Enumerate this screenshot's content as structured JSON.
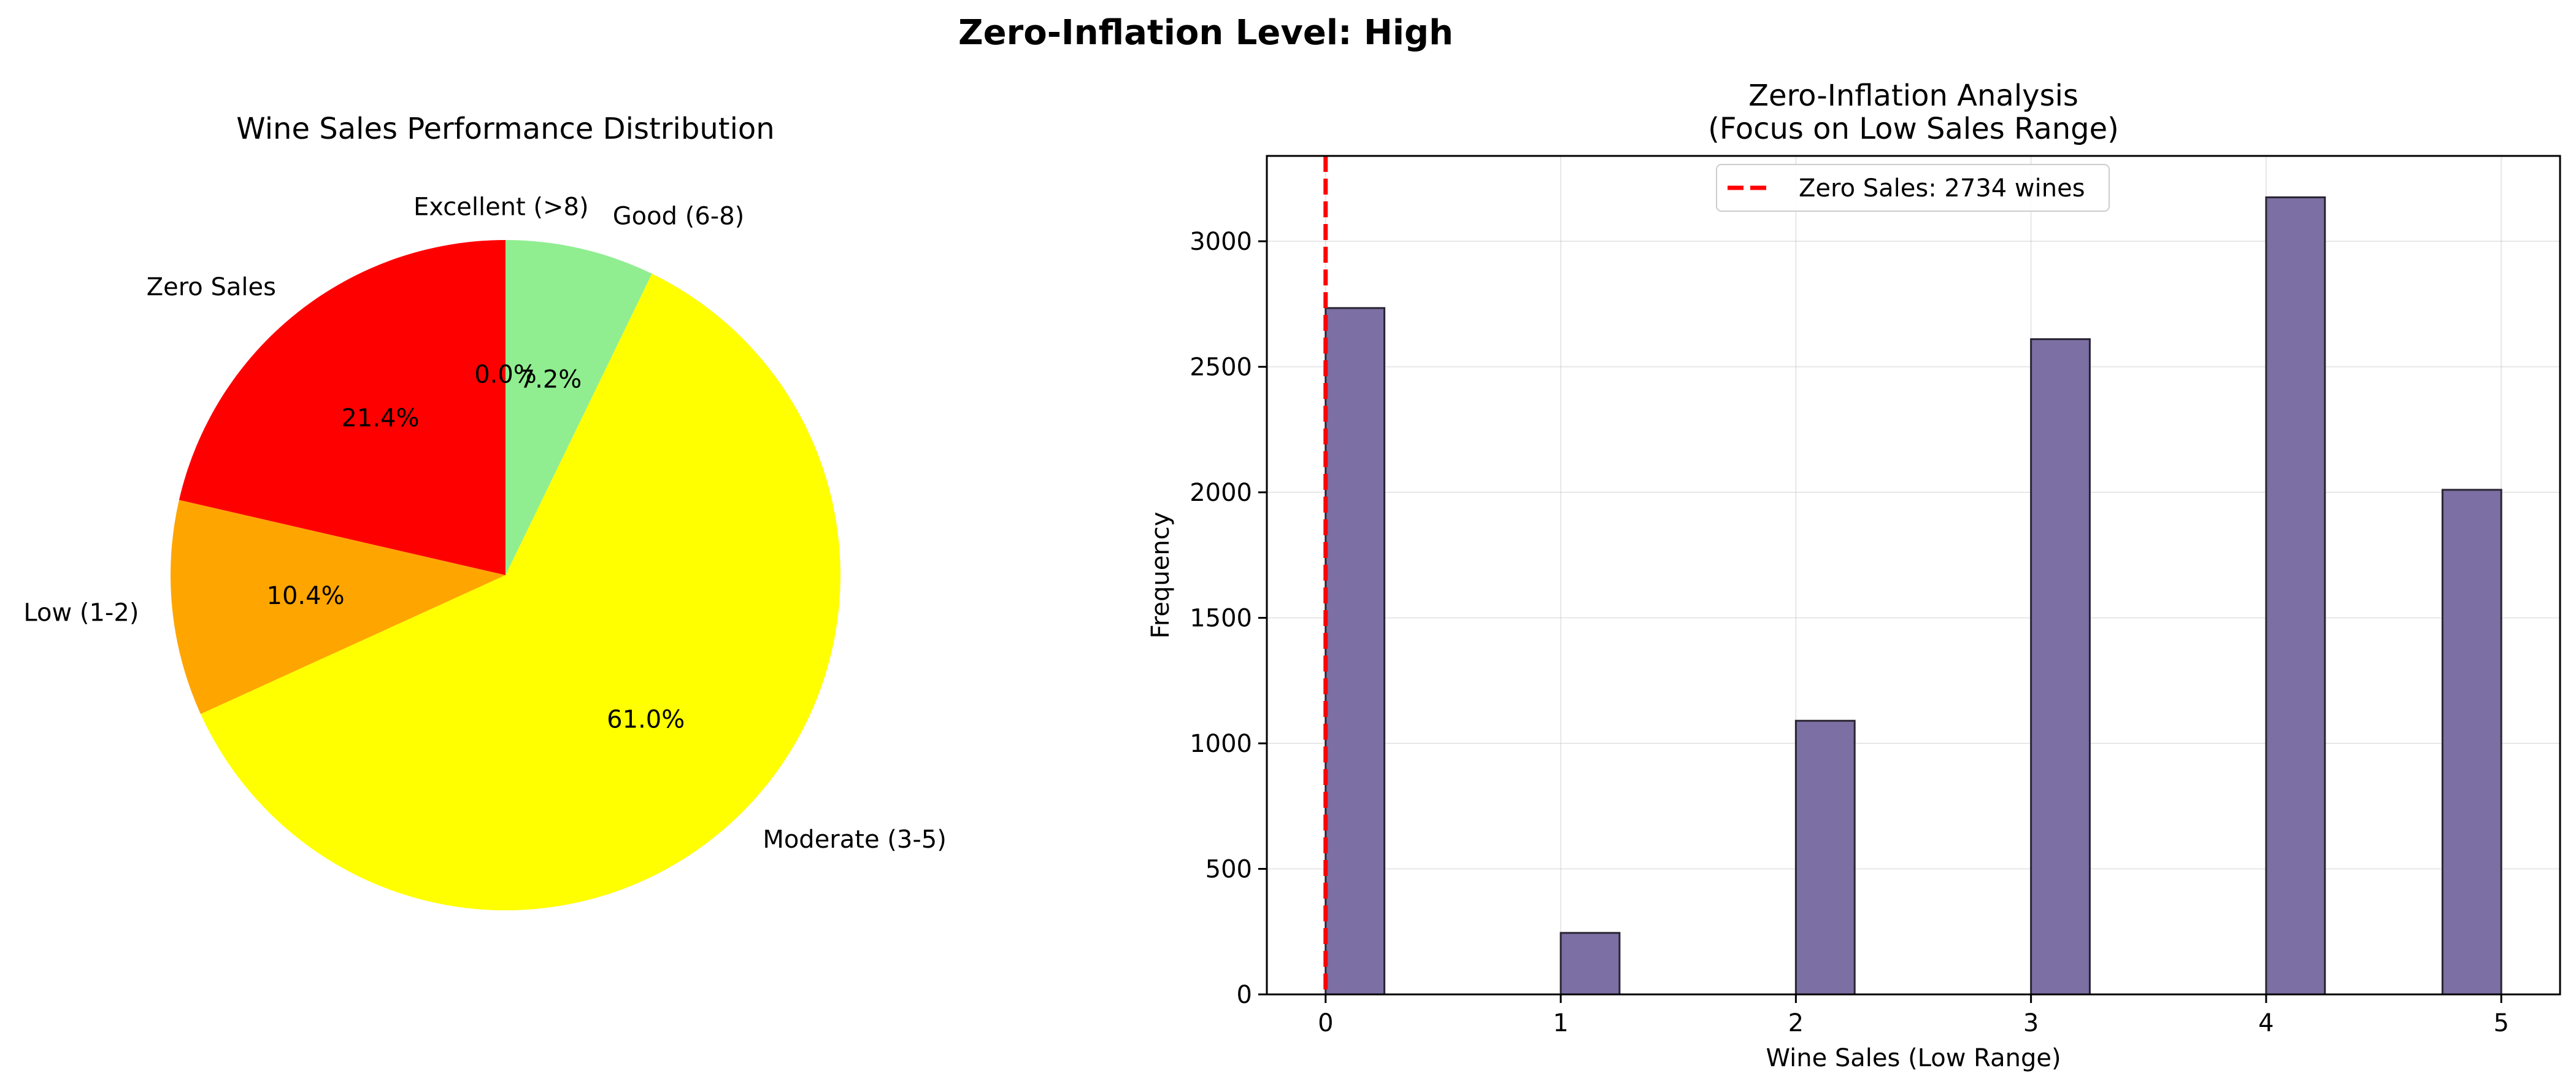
{
  "figure": {
    "suptitle": "Zero-Inflation Level: High"
  },
  "chart_data": [
    {
      "type": "pie",
      "title": "Wine Sales Performance Distribution",
      "labels": [
        "Zero Sales",
        "Low (1-2)",
        "Moderate (3-5)",
        "Good (6-8)",
        "Excellent (>8)"
      ],
      "values": [
        21.4,
        10.4,
        61.0,
        7.2,
        0.0
      ],
      "pct_labels": [
        "21.4%",
        "10.4%",
        "61.0%",
        "7.2%",
        "0.0%"
      ],
      "colors": [
        "#ff0000",
        "#ffa500",
        "#ffff00",
        "#90ee90",
        "#006400"
      ],
      "start_angle_deg": 90,
      "direction": "counterclockwise"
    },
    {
      "type": "bar",
      "title": "Zero-Inflation Analysis",
      "subtitle": "(Focus on Low Sales Range)",
      "xlabel": "Wine Sales (Low Range)",
      "ylabel": "Frequency",
      "xlim": [
        -0.25,
        5.25
      ],
      "ylim": [
        0,
        3340
      ],
      "xticks": [
        0,
        1,
        2,
        3,
        4,
        5
      ],
      "yticks": [
        0,
        500,
        1000,
        1500,
        2000,
        2500,
        3000
      ],
      "bin_width": 0.25,
      "bars": [
        {
          "x_start": 0,
          "value": 2734
        },
        {
          "x_start": 1,
          "value": 245
        },
        {
          "x_start": 2,
          "value": 1090
        },
        {
          "x_start": 3,
          "value": 2610
        },
        {
          "x_start": 4,
          "value": 3175
        },
        {
          "x_start": 4.75,
          "value": 2010
        }
      ],
      "bar_color": "#7b6fa3",
      "bar_edge_color": "#2b2433",
      "reference_line": {
        "x": 0,
        "color": "#ff0000",
        "style": "dashed",
        "label": "Zero Sales: 2734 wines"
      },
      "legend_position": "upper center",
      "grid": true
    }
  ]
}
